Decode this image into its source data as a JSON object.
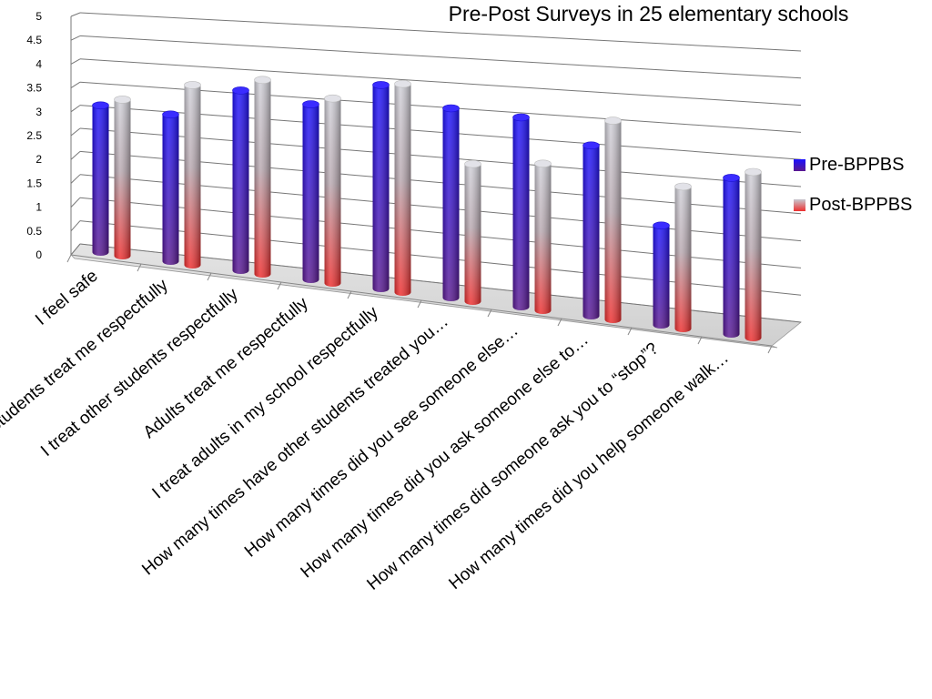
{
  "chart_data": {
    "type": "bar",
    "title": "Pre-Post Surveys in 25 elementary schools",
    "xlabel": "",
    "ylabel": "",
    "ylim": [
      0,
      5
    ],
    "yticks": [
      "0",
      "0.5",
      "1",
      "1.5",
      "2",
      "2.5",
      "3",
      "3.5",
      "4",
      "4.5",
      "5"
    ],
    "grid": true,
    "legend_position": "right",
    "categories": [
      "I feel safe",
      "Students treat me respectfully",
      "I treat other students respectfully",
      "Adults treat me respectfully",
      "I treat adults in my school respectfully",
      "How many times have other students treated you…",
      "How many times did you see someone else…",
      "How many times did you ask someone else to…",
      "How many times did someone ask you to “stop”?",
      "How many times did you help someone walk…"
    ],
    "series": [
      {
        "name": "Pre-BPPBS",
        "values": [
          3.1,
          3.1,
          3.8,
          3.7,
          4.3,
          4.0,
          4.0,
          3.6,
          2.1,
          3.3
        ],
        "color_top": "#1a10ff",
        "color_bottom": "#5a1890"
      },
      {
        "name": "Post-BPPBS",
        "values": [
          3.3,
          3.8,
          4.1,
          3.9,
          4.4,
          2.9,
          3.1,
          4.2,
          3.0,
          3.5
        ],
        "color_top": "#b8b8c8",
        "color_bottom": "#ee3030"
      }
    ]
  }
}
